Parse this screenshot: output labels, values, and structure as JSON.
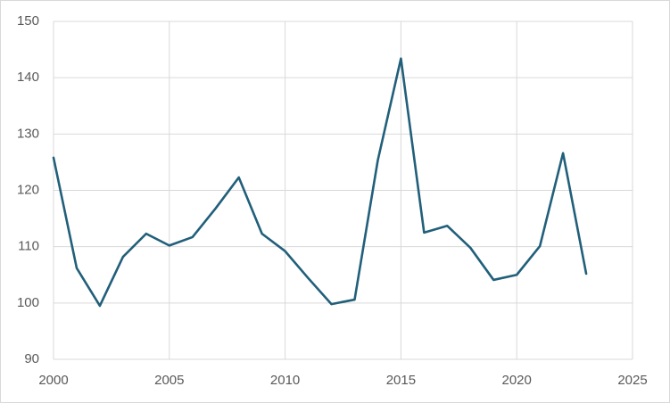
{
  "chart_data": {
    "type": "line",
    "x": [
      2000,
      2001,
      2002,
      2003,
      2004,
      2005,
      2006,
      2007,
      2008,
      2009,
      2010,
      2011,
      2012,
      2013,
      2014,
      2015,
      2016,
      2017,
      2018,
      2019,
      2020,
      2021,
      2022,
      2023
    ],
    "values": [
      125.8,
      106.2,
      99.5,
      108.2,
      112.3,
      110.2,
      111.7,
      116.8,
      122.3,
      112.3,
      109.2,
      104.4,
      99.8,
      100.6,
      125.3,
      143.4,
      112.5,
      113.7,
      109.8,
      104.1,
      105.0,
      110.1,
      126.6,
      105.2
    ],
    "color": "#215f7a",
    "xlim": [
      2000,
      2025
    ],
    "xticks": [
      2000,
      2005,
      2010,
      2015,
      2020,
      2025
    ],
    "ylim": [
      90,
      150
    ],
    "yticks": [
      90,
      100,
      110,
      120,
      130,
      140,
      150
    ],
    "grid": true
  }
}
